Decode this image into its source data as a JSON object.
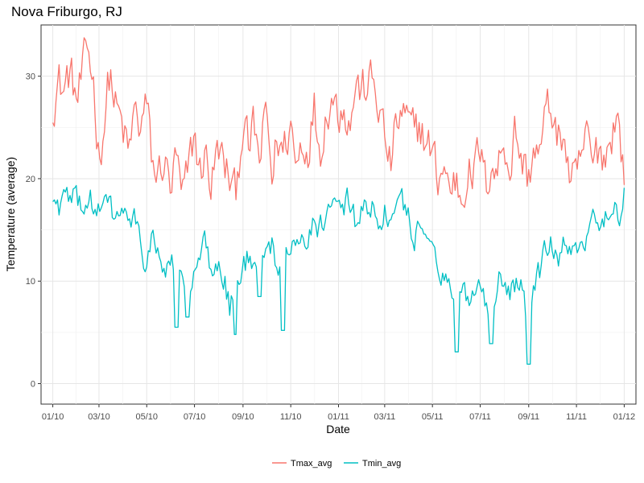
{
  "chart_data": {
    "type": "line",
    "title": "Nova Friburgo, RJ",
    "xlabel": "Date",
    "ylabel": "Temperature (average)",
    "x_ticks": [
      "01/10",
      "03/10",
      "05/10",
      "07/10",
      "09/10",
      "11/10",
      "01/11",
      "03/11",
      "05/11",
      "07/11",
      "09/11",
      "11/11",
      "01/12"
    ],
    "x_range": [
      "2010-01-01",
      "2012-01-01"
    ],
    "ylim": [
      -2,
      35
    ],
    "y_ticks": [
      0,
      10,
      20,
      30
    ],
    "grid": true,
    "legend_position": "bottom",
    "series": [
      {
        "name": "Tmax_avg",
        "color": "#F8766D",
        "points": [
          [
            "2010-01-01",
            27.5
          ],
          [
            "2010-01-08",
            29.5
          ],
          [
            "2010-01-15",
            28.5
          ],
          [
            "2010-01-22",
            30.5
          ],
          [
            "2010-02-01",
            27.5
          ],
          [
            "2010-02-08",
            30.0
          ],
          [
            "2010-02-15",
            32.5
          ],
          [
            "2010-02-22",
            29.5
          ],
          [
            "2010-03-01",
            22.0
          ],
          [
            "2010-03-08",
            26.0
          ],
          [
            "2010-03-15",
            30.5
          ],
          [
            "2010-03-22",
            27.0
          ],
          [
            "2010-04-01",
            24.5
          ],
          [
            "2010-04-08",
            22.0
          ],
          [
            "2010-04-15",
            26.5
          ],
          [
            "2010-04-22",
            25.0
          ],
          [
            "2010-05-01",
            27.0
          ],
          [
            "2010-05-08",
            21.5
          ],
          [
            "2010-05-15",
            20.0
          ],
          [
            "2010-05-22",
            22.0
          ],
          [
            "2010-06-01",
            19.0
          ],
          [
            "2010-06-08",
            22.0
          ],
          [
            "2010-06-15",
            17.5
          ],
          [
            "2010-06-22",
            20.0
          ],
          [
            "2010-07-01",
            24.5
          ],
          [
            "2010-07-08",
            20.5
          ],
          [
            "2010-07-15",
            22.5
          ],
          [
            "2010-07-22",
            19.5
          ],
          [
            "2010-08-01",
            23.0
          ],
          [
            "2010-08-08",
            21.0
          ],
          [
            "2010-08-15",
            20.0
          ],
          [
            "2010-08-22",
            18.0
          ],
          [
            "2010-09-01",
            26.0
          ],
          [
            "2010-09-08",
            22.5
          ],
          [
            "2010-09-15",
            25.0
          ],
          [
            "2010-09-22",
            21.5
          ],
          [
            "2010-10-01",
            26.5
          ],
          [
            "2010-10-08",
            20.0
          ],
          [
            "2010-10-15",
            24.0
          ],
          [
            "2010-10-22",
            22.5
          ],
          [
            "2010-11-01",
            25.5
          ],
          [
            "2010-11-08",
            21.0
          ],
          [
            "2010-11-15",
            24.0
          ],
          [
            "2010-11-22",
            23.0
          ],
          [
            "2010-12-01",
            27.0
          ],
          [
            "2010-12-08",
            23.0
          ],
          [
            "2010-12-15",
            26.0
          ],
          [
            "2010-12-22",
            28.5
          ],
          [
            "2011-01-01",
            26.5
          ],
          [
            "2011-01-08",
            28.0
          ],
          [
            "2011-01-15",
            25.0
          ],
          [
            "2011-01-22",
            29.0
          ],
          [
            "2011-02-01",
            28.5
          ],
          [
            "2011-02-08",
            29.5
          ],
          [
            "2011-02-15",
            29.0
          ],
          [
            "2011-02-22",
            27.0
          ],
          [
            "2011-03-01",
            24.0
          ],
          [
            "2011-03-08",
            21.0
          ],
          [
            "2011-03-15",
            24.5
          ],
          [
            "2011-03-22",
            26.5
          ],
          [
            "2011-04-01",
            25.0
          ],
          [
            "2011-04-08",
            24.0
          ],
          [
            "2011-04-15",
            25.5
          ],
          [
            "2011-04-22",
            23.5
          ],
          [
            "2011-05-01",
            22.5
          ],
          [
            "2011-05-08",
            20.0
          ],
          [
            "2011-05-15",
            21.5
          ],
          [
            "2011-05-22",
            19.0
          ],
          [
            "2011-06-01",
            20.0
          ],
          [
            "2011-06-08",
            18.0
          ],
          [
            "2011-06-15",
            21.5
          ],
          [
            "2011-06-22",
            20.0
          ],
          [
            "2011-07-01",
            23.0
          ],
          [
            "2011-07-08",
            19.0
          ],
          [
            "2011-07-15",
            22.0
          ],
          [
            "2011-07-22",
            20.5
          ],
          [
            "2011-08-01",
            24.0
          ],
          [
            "2011-08-08",
            21.0
          ],
          [
            "2011-08-15",
            25.0
          ],
          [
            "2011-08-22",
            22.0
          ],
          [
            "2011-09-01",
            20.0
          ],
          [
            "2011-09-08",
            23.5
          ],
          [
            "2011-09-15",
            22.0
          ],
          [
            "2011-09-22",
            26.0
          ],
          [
            "2011-10-01",
            27.0
          ],
          [
            "2011-10-08",
            23.0
          ],
          [
            "2011-10-15",
            25.0
          ],
          [
            "2011-10-22",
            20.5
          ],
          [
            "2011-11-01",
            19.0
          ],
          [
            "2011-11-08",
            22.5
          ],
          [
            "2011-11-15",
            24.0
          ],
          [
            "2011-11-22",
            21.0
          ],
          [
            "2011-12-01",
            23.5
          ],
          [
            "2011-12-08",
            22.0
          ],
          [
            "2011-12-15",
            24.5
          ],
          [
            "2011-12-22",
            26.5
          ],
          [
            "2011-12-28",
            23.0
          ],
          [
            "2012-01-01",
            20.5
          ]
        ]
      },
      {
        "name": "Tmin_avg",
        "color": "#00BFC4",
        "points": [
          [
            "2010-01-01",
            18.0
          ],
          [
            "2010-01-08",
            17.0
          ],
          [
            "2010-01-15",
            18.5
          ],
          [
            "2010-01-22",
            17.5
          ],
          [
            "2010-02-01",
            18.0
          ],
          [
            "2010-02-08",
            17.5
          ],
          [
            "2010-02-15",
            18.0
          ],
          [
            "2010-02-22",
            17.5
          ],
          [
            "2010-03-01",
            16.5
          ],
          [
            "2010-03-08",
            17.5
          ],
          [
            "2010-03-15",
            17.0
          ],
          [
            "2010-03-22",
            16.0
          ],
          [
            "2010-04-01",
            17.0
          ],
          [
            "2010-04-08",
            15.5
          ],
          [
            "2010-04-15",
            16.0
          ],
          [
            "2010-04-22",
            13.5
          ],
          [
            "2010-05-01",
            12.0
          ],
          [
            "2010-05-08",
            14.0
          ],
          [
            "2010-05-15",
            12.5
          ],
          [
            "2010-05-22",
            11.0
          ],
          [
            "2010-06-01",
            12.0
          ],
          [
            "2010-06-08",
            9.5
          ],
          [
            "2010-06-15",
            11.0
          ],
          [
            "2010-06-22",
            8.0
          ],
          [
            "2010-07-01",
            10.0
          ],
          [
            "2010-07-08",
            12.0
          ],
          [
            "2010-07-15",
            13.5
          ],
          [
            "2010-07-22",
            11.0
          ],
          [
            "2010-08-01",
            12.5
          ],
          [
            "2010-08-08",
            10.5
          ],
          [
            "2010-08-15",
            7.5
          ],
          [
            "2010-08-22",
            9.0
          ],
          [
            "2010-09-01",
            11.0
          ],
          [
            "2010-09-08",
            12.5
          ],
          [
            "2010-09-15",
            10.5
          ],
          [
            "2010-09-22",
            13.5
          ],
          [
            "2010-10-01",
            12.0
          ],
          [
            "2010-10-08",
            14.0
          ],
          [
            "2010-10-15",
            11.5
          ],
          [
            "2010-10-22",
            13.0
          ],
          [
            "2010-11-01",
            14.5
          ],
          [
            "2010-11-08",
            12.5
          ],
          [
            "2010-11-15",
            15.5
          ],
          [
            "2010-11-22",
            14.0
          ],
          [
            "2010-12-01",
            16.0
          ],
          [
            "2010-12-08",
            15.0
          ],
          [
            "2010-12-15",
            17.0
          ],
          [
            "2010-12-22",
            16.0
          ],
          [
            "2011-01-01",
            17.5
          ],
          [
            "2011-01-08",
            16.5
          ],
          [
            "2011-01-15",
            18.0
          ],
          [
            "2011-01-22",
            16.0
          ],
          [
            "2011-02-01",
            17.5
          ],
          [
            "2011-02-08",
            16.5
          ],
          [
            "2011-02-15",
            17.5
          ],
          [
            "2011-02-22",
            16.0
          ],
          [
            "2011-03-01",
            17.0
          ],
          [
            "2011-03-08",
            15.5
          ],
          [
            "2011-03-15",
            16.5
          ],
          [
            "2011-03-22",
            17.5
          ],
          [
            "2011-04-01",
            16.0
          ],
          [
            "2011-04-08",
            14.5
          ],
          [
            "2011-04-15",
            15.5
          ],
          [
            "2011-04-22",
            13.5
          ],
          [
            "2011-05-01",
            14.5
          ],
          [
            "2011-05-08",
            12.0
          ],
          [
            "2011-05-15",
            11.0
          ],
          [
            "2011-05-22",
            9.5
          ],
          [
            "2011-06-01",
            8.0
          ],
          [
            "2011-06-08",
            10.5
          ],
          [
            "2011-06-15",
            7.5
          ],
          [
            "2011-06-22",
            9.0
          ],
          [
            "2011-07-01",
            10.5
          ],
          [
            "2011-07-08",
            8.0
          ],
          [
            "2011-07-15",
            6.5
          ],
          [
            "2011-07-22",
            9.5
          ],
          [
            "2011-08-01",
            11.0
          ],
          [
            "2011-08-08",
            8.5
          ],
          [
            "2011-08-15",
            10.0
          ],
          [
            "2011-08-22",
            9.0
          ],
          [
            "2011-09-01",
            6.0
          ],
          [
            "2011-09-08",
            9.5
          ],
          [
            "2011-09-15",
            11.0
          ],
          [
            "2011-09-22",
            12.5
          ],
          [
            "2011-10-01",
            13.5
          ],
          [
            "2011-10-08",
            11.0
          ],
          [
            "2011-10-15",
            14.0
          ],
          [
            "2011-10-22",
            12.0
          ],
          [
            "2011-11-01",
            13.0
          ],
          [
            "2011-11-08",
            12.0
          ],
          [
            "2011-11-15",
            14.5
          ],
          [
            "2011-11-22",
            15.5
          ],
          [
            "2011-12-01",
            13.5
          ],
          [
            "2011-12-08",
            16.0
          ],
          [
            "2011-12-15",
            15.0
          ],
          [
            "2011-12-22",
            16.5
          ],
          [
            "2011-12-28",
            15.5
          ],
          [
            "2012-01-01",
            18.0
          ]
        ],
        "extremes": [
          [
            "2010-06-08",
            5.5
          ],
          [
            "2010-06-22",
            6.5
          ],
          [
            "2010-08-22",
            4.8
          ],
          [
            "2010-09-22",
            8.5
          ],
          [
            "2010-10-22",
            5.2
          ],
          [
            "2011-06-01",
            3.1
          ],
          [
            "2011-07-15",
            3.9
          ],
          [
            "2011-09-01",
            1.9
          ]
        ]
      }
    ]
  }
}
